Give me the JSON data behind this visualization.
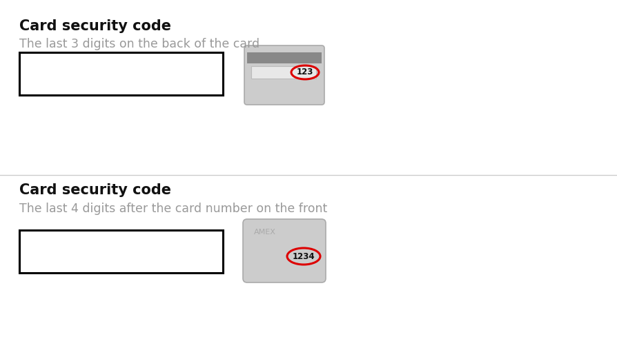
{
  "bg_color": "#ffffff",
  "title1": "Card security code",
  "subtitle1": "The last 3 digits on the back of the card",
  "title2": "Card security code",
  "subtitle2": "The last 4 digits after the card number on the front",
  "title_fontsize": 15,
  "subtitle_fontsize": 12.5,
  "title_color": "#111111",
  "subtitle_color": "#999999",
  "input_box_color": "#000000",
  "card_bg": "#cccccc",
  "card_stripe_color": "#888888",
  "card_border_color": "#aaaaaa",
  "ellipse_color": "#dd0000",
  "code_color": "#111111",
  "divider_color": "#cccccc",
  "amex_text_color": "#aaaaaa",
  "sig_panel_color": "#e8e8e8",
  "sig_panel_border": "#bbbbbb",
  "fig_width": 8.94,
  "fig_height": 5.08,
  "dpi": 100
}
